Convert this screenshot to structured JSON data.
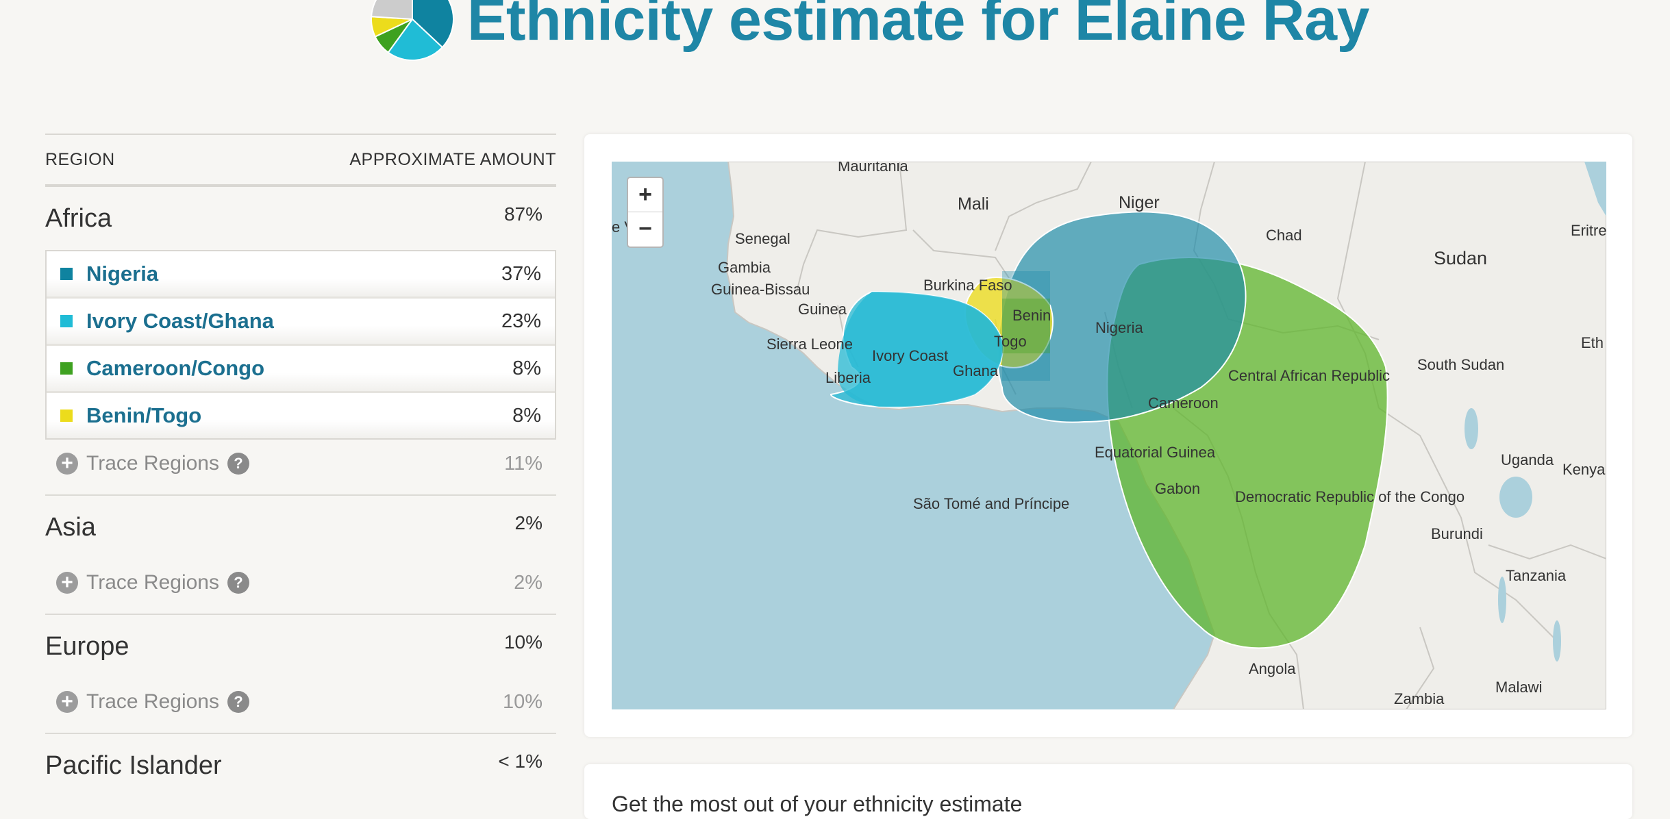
{
  "header": {
    "title": "Ethnicity estimate for Elaine Ray"
  },
  "table": {
    "col_region": "REGION",
    "col_amount": "APPROXIMATE AMOUNT",
    "groups": [
      {
        "name": "Africa",
        "pct": "87%",
        "subregions": [
          {
            "name": "Nigeria",
            "pct": "37%",
            "color": "#0f83a0"
          },
          {
            "name": "Ivory Coast/Ghana",
            "pct": "23%",
            "color": "#20bcd6"
          },
          {
            "name": "Cameroon/Congo",
            "pct": "8%",
            "color": "#3ea120"
          },
          {
            "name": "Benin/Togo",
            "pct": "8%",
            "color": "#ecdc1c"
          }
        ],
        "trace_label": "Trace Regions",
        "trace_pct": "11%"
      },
      {
        "name": "Asia",
        "pct": "2%",
        "trace_label": "Trace Regions",
        "trace_pct": "2%"
      },
      {
        "name": "Europe",
        "pct": "10%",
        "trace_label": "Trace Regions",
        "trace_pct": "10%"
      },
      {
        "name": "Pacific Islander",
        "pct": "< 1%"
      }
    ]
  },
  "map": {
    "zoom_in": "+",
    "zoom_out": "−",
    "labels": {
      "mauritania": "Mauritania",
      "mali": "Mali",
      "niger": "Niger",
      "chad": "Chad",
      "sudan": "Sudan",
      "eritrea": "Eritre",
      "senegal": "Senegal",
      "gambia": "Gambia",
      "guinea_bissau": "Guinea-Bissau",
      "guinea": "Guinea",
      "sierra_leone": "Sierra Leone",
      "liberia": "Liberia",
      "ivory_coast": "Ivory Coast",
      "ghana": "Ghana",
      "burkina": "Burkina Faso",
      "benin": "Benin",
      "togo": "Togo",
      "nigeria": "Nigeria",
      "car": "Central African Republic",
      "south_sudan": "South Sudan",
      "ethiopia": "Eth",
      "cameroon": "Cameroon",
      "eq_guinea": "Equatorial Guinea",
      "gabon": "Gabon",
      "sao_tome": "São Tomé and Príncipe",
      "drc": "Democratic Republic of the Congo",
      "uganda": "Uganda",
      "kenya": "Kenya",
      "burundi": "Burundi",
      "tanzania": "Tanzania",
      "angola": "Angola",
      "zambia": "Zambia",
      "malawi": "Malawi",
      "cape_verde": "e V"
    }
  },
  "second_card": {
    "text": "Get the most out of your ethnicity estimate"
  },
  "colors": {
    "nigeria": "#0f83a0",
    "ivory_coast_ghana": "#20bcd6",
    "cameroon_congo": "#3ea120",
    "benin_togo": "#ecdc1c",
    "other": "#cccccc",
    "title": "#1e86a6"
  }
}
